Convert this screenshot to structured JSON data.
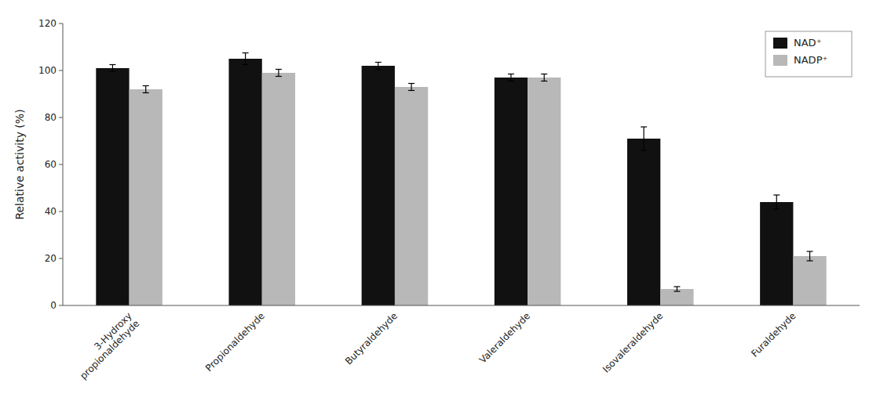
{
  "chart_data": {
    "type": "bar",
    "categories": [
      "3-Hydroxy\npropionaldehyde",
      "Propionaldehyde",
      "Butyraldehyde",
      "Valeraldehyde",
      "Isovaleraldehyde",
      "Furaldehyde"
    ],
    "series": [
      {
        "name": "NAD⁺",
        "color": "#111111",
        "values": [
          101,
          105,
          102,
          97,
          71,
          44
        ],
        "errors": [
          1.5,
          2.5,
          1.5,
          1.5,
          5,
          3
        ]
      },
      {
        "name": "NADP⁺",
        "color": "#b8b8b8",
        "values": [
          92,
          99,
          93,
          97,
          7,
          21
        ],
        "errors": [
          1.5,
          1.5,
          1.5,
          1.5,
          1.0,
          2
        ]
      }
    ],
    "y_label": "Relative activity (%)",
    "ylim": [
      0,
      120
    ],
    "yticks": [
      0,
      20,
      40,
      60,
      80,
      100,
      120
    ],
    "grid": false,
    "legend": "upper right"
  }
}
